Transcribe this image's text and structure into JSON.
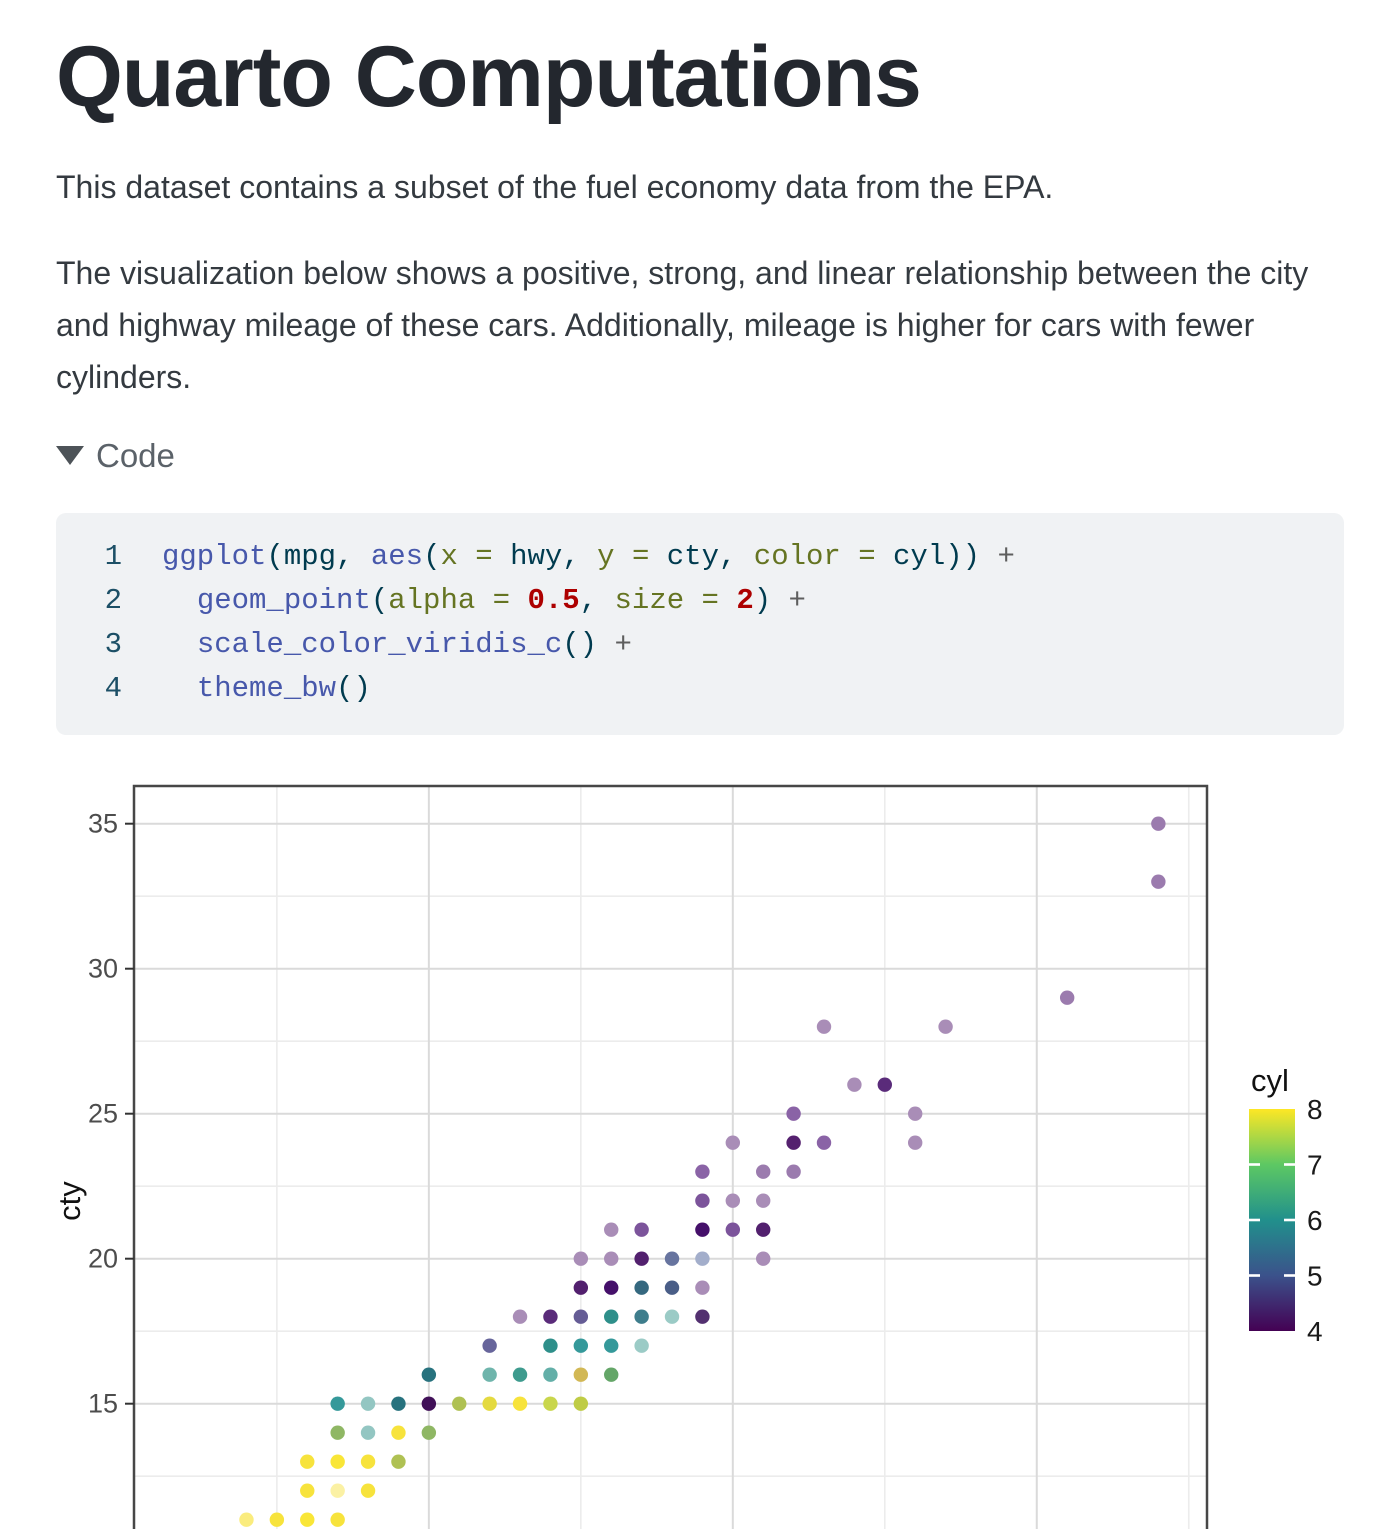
{
  "page": {
    "title": "Quarto Computations"
  },
  "paragraphs": {
    "p1": "This dataset contains a subset of the fuel economy data from the EPA.",
    "p2": "The visualization below shows a positive, strong, and linear relationship between the city and highway mileage of these cars. Additionally, mileage is higher for cars with fewer cylinders."
  },
  "code": {
    "marker": "triangle-down",
    "summary_label": "Code",
    "lines": [
      {
        "n": "1",
        "tokens": [
          [
            "fu",
            "ggplot"
          ],
          [
            "df",
            "("
          ],
          [
            "df",
            "mpg"
          ],
          [
            "df",
            ", "
          ],
          [
            "fu",
            "aes"
          ],
          [
            "df",
            "("
          ],
          [
            "at",
            "x = "
          ],
          [
            "df",
            "hwy"
          ],
          [
            "df",
            ", "
          ],
          [
            "at",
            "y = "
          ],
          [
            "df",
            "cty"
          ],
          [
            "df",
            ", "
          ],
          [
            "at",
            "color = "
          ],
          [
            "df",
            "cyl"
          ],
          [
            "df",
            "))"
          ],
          [
            "op",
            " +"
          ]
        ]
      },
      {
        "n": "2",
        "tokens": [
          [
            "df",
            "  "
          ],
          [
            "fu",
            "geom_point"
          ],
          [
            "df",
            "("
          ],
          [
            "at",
            "alpha = "
          ],
          [
            "fl",
            "0.5"
          ],
          [
            "df",
            ", "
          ],
          [
            "at",
            "size = "
          ],
          [
            "dv",
            "2"
          ],
          [
            "df",
            ")"
          ],
          [
            "op",
            " +"
          ]
        ]
      },
      {
        "n": "3",
        "tokens": [
          [
            "df",
            "  "
          ],
          [
            "fu",
            "scale_color_viridis_c"
          ],
          [
            "df",
            "()"
          ],
          [
            "op",
            " +"
          ]
        ]
      },
      {
        "n": "4",
        "tokens": [
          [
            "df",
            "  "
          ],
          [
            "fu",
            "theme_bw"
          ],
          [
            "df",
            "()"
          ]
        ]
      }
    ]
  },
  "chart_data": {
    "type": "scatter",
    "title": "",
    "xlabel": "",
    "ylabel": "cty",
    "x": {
      "domain": [
        10.3,
        45.6
      ],
      "major": [
        20,
        30,
        40
      ],
      "minor": [
        15,
        25,
        35,
        45
      ]
    },
    "y": {
      "domain": [
        7.7,
        36.3
      ],
      "major": [
        15,
        20,
        25,
        30,
        35
      ],
      "minor": [
        12.5,
        17.5,
        22.5,
        27.5,
        32.5
      ],
      "tick_labels": [
        "15",
        "20",
        "25",
        "30",
        "35"
      ]
    },
    "grid": true,
    "theme": "bw",
    "point_alpha": 0.5,
    "point_size": 2,
    "colors": {
      "panel_border": "#474747",
      "grid_major": "#dadada",
      "grid_minor": "#ececec",
      "tick": "#333333",
      "tick_label": "#4d4d4d",
      "axis_title": "#111111"
    },
    "legend": {
      "title": "cyl",
      "position": "right",
      "domain": [
        4,
        8
      ],
      "tick_values": [
        5,
        6,
        7
      ],
      "labels": [
        "8",
        "7",
        "6",
        "5",
        "4"
      ],
      "label_values": [
        8,
        7,
        6,
        5,
        4
      ],
      "gradient_top_to_bottom": [
        "#FDE725",
        "#5DC863",
        "#21908C",
        "#3B528B",
        "#440154"
      ]
    },
    "points": [
      [
        44,
        35,
        "#9B7BAE"
      ],
      [
        44,
        33,
        "#9B7BAE"
      ],
      [
        41,
        29,
        "#9B7BAE"
      ],
      [
        33,
        28,
        "#A98DB7"
      ],
      [
        37,
        28,
        "#A98DB7"
      ],
      [
        34,
        26,
        "#A98DB7"
      ],
      [
        35,
        26,
        "#5A2B7A"
      ],
      [
        32,
        25,
        "#8A63A6"
      ],
      [
        36,
        25,
        "#A98DB7"
      ],
      [
        30,
        24,
        "#A98DB7"
      ],
      [
        32,
        24,
        "#55216F"
      ],
      [
        33,
        24,
        "#8A63A6"
      ],
      [
        36,
        24,
        "#A98DB7"
      ],
      [
        29,
        23,
        "#8A63A6"
      ],
      [
        31,
        23,
        "#9B7BAE"
      ],
      [
        32,
        23,
        "#9B7BAE"
      ],
      [
        29,
        22,
        "#7C549B"
      ],
      [
        30,
        22,
        "#A98DB7"
      ],
      [
        31,
        22,
        "#A98DB7"
      ],
      [
        26,
        21,
        "#A98DB7"
      ],
      [
        27,
        21,
        "#7C549B"
      ],
      [
        29,
        21,
        "#45106A"
      ],
      [
        30,
        21,
        "#7C549B"
      ],
      [
        31,
        21,
        "#52206E"
      ],
      [
        25,
        20,
        "#A98DB7"
      ],
      [
        26,
        20,
        "#A98DB7"
      ],
      [
        27,
        20,
        "#52206E"
      ],
      [
        28,
        20,
        "#67749F"
      ],
      [
        29,
        20,
        "#A3AECB"
      ],
      [
        31,
        20,
        "#A98DB7"
      ],
      [
        25,
        19,
        "#52206E"
      ],
      [
        26,
        19,
        "#45106A"
      ],
      [
        27,
        19,
        "#35687F"
      ],
      [
        28,
        19,
        "#4A5E87"
      ],
      [
        29,
        19,
        "#A98DB7"
      ],
      [
        23,
        18,
        "#A98DB7"
      ],
      [
        24,
        18,
        "#5A2B7A"
      ],
      [
        25,
        18,
        "#655C95"
      ],
      [
        26,
        18,
        "#2E8F8A"
      ],
      [
        27,
        18,
        "#3E7D8C"
      ],
      [
        28,
        18,
        "#9BCBC6"
      ],
      [
        29,
        18,
        "#533070"
      ],
      [
        22,
        17,
        "#67659B"
      ],
      [
        24,
        17,
        "#2E8F8A"
      ],
      [
        25,
        17,
        "#35999A"
      ],
      [
        26,
        17,
        "#35999A"
      ],
      [
        27,
        17,
        "#9BCBC6"
      ],
      [
        20,
        16,
        "#27727E"
      ],
      [
        22,
        16,
        "#6FB5AC"
      ],
      [
        23,
        16,
        "#3E9B8E"
      ],
      [
        24,
        16,
        "#63AFA8"
      ],
      [
        25,
        16,
        "#D2B855"
      ],
      [
        26,
        16,
        "#64A668"
      ],
      [
        17,
        15,
        "#35999A"
      ],
      [
        18,
        15,
        "#93C6C2"
      ],
      [
        19,
        15,
        "#27727E"
      ],
      [
        20,
        15,
        "#411058"
      ],
      [
        21,
        15,
        "#AFC153"
      ],
      [
        22,
        15,
        "#E4DA40"
      ],
      [
        23,
        15,
        "#F7E33C"
      ],
      [
        24,
        15,
        "#C9D64C"
      ],
      [
        25,
        15,
        "#BFCC45"
      ],
      [
        17,
        14,
        "#8FB764"
      ],
      [
        18,
        14,
        "#93C6C2"
      ],
      [
        19,
        14,
        "#F7E33C"
      ],
      [
        20,
        14,
        "#8FB764"
      ],
      [
        16,
        13,
        "#F7E33C"
      ],
      [
        17,
        13,
        "#F9E637"
      ],
      [
        18,
        13,
        "#F7E33C"
      ],
      [
        19,
        13,
        "#AFC153"
      ],
      [
        16,
        12,
        "#F7E33C"
      ],
      [
        17,
        12,
        "#FBF1A4"
      ],
      [
        18,
        12,
        "#F7E33C"
      ],
      [
        14,
        11,
        "#FAEC7E"
      ],
      [
        15,
        11,
        "#F7E33C"
      ],
      [
        16,
        11,
        "#F9E637"
      ],
      [
        17,
        11,
        "#F7E33C"
      ]
    ]
  }
}
